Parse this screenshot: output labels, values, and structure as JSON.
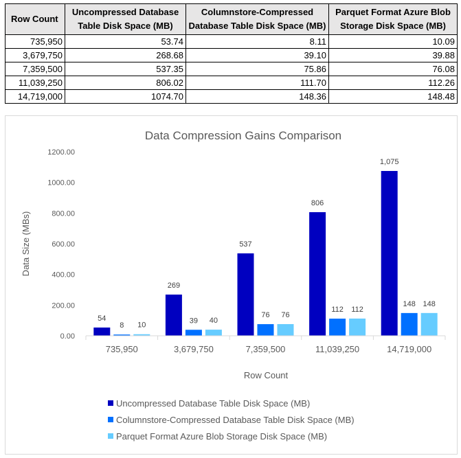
{
  "table": {
    "headers": [
      "Row Count",
      "Uncompressed Database Table Disk Space (MB)",
      "Columnstore-Compressed Database Table Disk Space (MB)",
      "Parquet Format Azure Blob Storage Disk Space (MB)"
    ],
    "rows": [
      [
        "735,950",
        "53.74",
        "8.11",
        "10.09"
      ],
      [
        "3,679,750",
        "268.68",
        "39.10",
        "39.88"
      ],
      [
        "7,359,500",
        "537.35",
        "75.86",
        "76.08"
      ],
      [
        "11,039,250",
        "806.02",
        "111.70",
        "112.26"
      ],
      [
        "14,719,000",
        "1074.70",
        "148.36",
        "148.48"
      ]
    ]
  },
  "chart_data": {
    "type": "bar",
    "title": "Data Compression Gains Comparison",
    "xlabel": "Row Count",
    "ylabel": "Data Size (MBs)",
    "ylim": [
      0,
      1200
    ],
    "y_ticks": [
      "0.00",
      "200.00",
      "400.00",
      "600.00",
      "800.00",
      "1000.00",
      "1200.00"
    ],
    "grid": false,
    "legend_position": "bottom",
    "categories": [
      "735,950",
      "3,679,750",
      "7,359,500",
      "11,039,250",
      "14,719,000"
    ],
    "series": [
      {
        "name": "Uncompressed Database Table Disk Space (MB)",
        "color": "#0000c0",
        "values": [
          53.74,
          268.68,
          537.35,
          806.02,
          1074.7
        ],
        "labels": [
          "54",
          "269",
          "537",
          "806",
          "1,075"
        ]
      },
      {
        "name": "Columnstore-Compressed Database Table Disk Space (MB)",
        "color": "#0070ff",
        "values": [
          8.11,
          39.1,
          75.86,
          111.7,
          148.36
        ],
        "labels": [
          "8",
          "39",
          "76",
          "112",
          "148"
        ]
      },
      {
        "name": "Parquet Format Azure Blob Storage Disk Space (MB)",
        "color": "#66ccff",
        "values": [
          10.09,
          39.88,
          76.08,
          112.26,
          148.48
        ],
        "labels": [
          "10",
          "40",
          "76",
          "112",
          "148"
        ]
      }
    ]
  }
}
